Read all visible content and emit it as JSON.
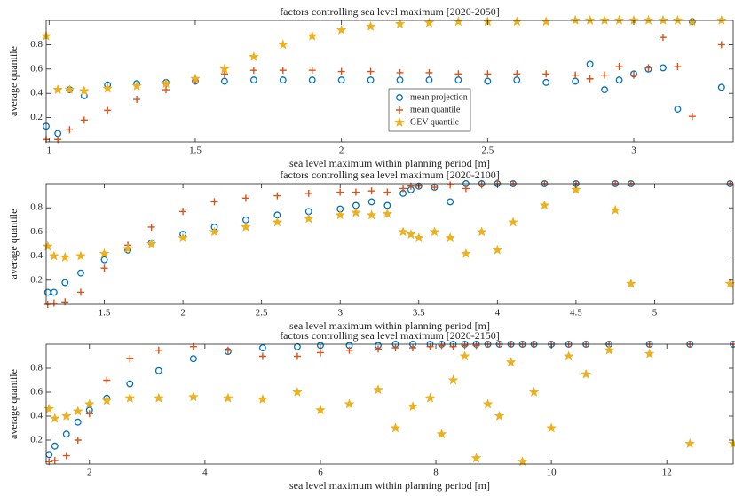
{
  "chart_data": [
    {
      "type": "scatter",
      "title": "factors controlling sea level maximum [2020-2050]",
      "x_label": "sea level maximum within planning period [m]",
      "y_label": "average quantile",
      "xlim": [
        0.99,
        3.34
      ],
      "ylim": [
        0,
        1
      ],
      "xticks": [
        1,
        1.5,
        2,
        2.5,
        3
      ],
      "yticks": [
        0.2,
        0.4,
        0.6,
        0.8
      ],
      "legend": "lower center",
      "x": [
        0.99,
        1.03,
        1.07,
        1.12,
        1.2,
        1.3,
        1.4,
        1.5,
        1.6,
        1.7,
        1.8,
        1.9,
        2.0,
        2.1,
        2.2,
        2.3,
        2.4,
        2.5,
        2.6,
        2.7,
        2.8,
        2.85,
        2.9,
        2.95,
        3.0,
        3.05,
        3.1,
        3.15,
        3.2,
        3.3
      ],
      "series": [
        {
          "name": "mean projection",
          "color": "#0072bd",
          "marker": "circle",
          "values": [
            0.13,
            0.07,
            0.43,
            0.38,
            0.47,
            0.48,
            0.49,
            0.5,
            0.5,
            0.51,
            0.51,
            0.51,
            0.51,
            0.51,
            0.51,
            0.51,
            0.51,
            0.5,
            0.51,
            0.49,
            0.5,
            0.64,
            0.43,
            0.51,
            0.56,
            0.6,
            0.61,
            0.27,
            0.99,
            0.45
          ]
        },
        {
          "name": "mean quantile",
          "color": "#d95319",
          "marker": "plus",
          "values": [
            0.02,
            0.02,
            0.1,
            0.18,
            0.26,
            0.35,
            0.43,
            0.5,
            0.56,
            0.59,
            0.59,
            0.59,
            0.58,
            0.58,
            0.57,
            0.57,
            0.56,
            0.56,
            0.56,
            0.56,
            0.55,
            0.52,
            0.55,
            0.62,
            0.55,
            0.61,
            0.86,
            0.62,
            0.21,
            0.8
          ]
        },
        {
          "name": "GEV quantile",
          "color": "#edb120",
          "marker": "star",
          "values": [
            0.87,
            0.43,
            0.43,
            0.42,
            0.44,
            0.46,
            0.48,
            0.52,
            0.6,
            0.7,
            0.8,
            0.87,
            0.92,
            0.95,
            0.97,
            0.98,
            0.99,
            0.99,
            0.99,
            0.99,
            1,
            1,
            1,
            1,
            1,
            1,
            1,
            1,
            0.99,
            1
          ]
        }
      ]
    },
    {
      "type": "scatter",
      "title": "factors controlling sea level maximum [2020-2100]",
      "x_label": "sea level maximum within planning period [m]",
      "y_label": "average quantile",
      "xlim": [
        1.13,
        5.5
      ],
      "ylim": [
        0,
        1
      ],
      "xticks": [
        1.5,
        2,
        2.5,
        3,
        3.5,
        4,
        4.5,
        5
      ],
      "yticks": [
        0.2,
        0.4,
        0.6,
        0.8
      ],
      "x": [
        1.14,
        1.18,
        1.25,
        1.35,
        1.5,
        1.65,
        1.8,
        2.0,
        2.2,
        2.4,
        2.6,
        2.8,
        3.0,
        3.1,
        3.2,
        3.3,
        3.4,
        3.45,
        3.5,
        3.6,
        3.7,
        3.8,
        3.9,
        4.0,
        4.1,
        4.3,
        4.5,
        4.75,
        4.85,
        5.48
      ],
      "series": [
        {
          "color": "#0072bd",
          "marker": "circle",
          "values": [
            0.1,
            0.1,
            0.18,
            0.26,
            0.37,
            0.45,
            0.51,
            0.58,
            0.64,
            0.7,
            0.74,
            0.77,
            0.79,
            0.82,
            0.85,
            0.82,
            0.92,
            0.95,
            0.98,
            0.97,
            0.85,
            1,
            1,
            1,
            1,
            1,
            1,
            1,
            1,
            1
          ]
        },
        {
          "color": "#d95319",
          "marker": "plus",
          "values": [
            0,
            0.01,
            0.02,
            0.1,
            0.3,
            0.49,
            0.64,
            0.77,
            0.85,
            0.88,
            0.9,
            0.92,
            0.93,
            0.93,
            0.94,
            0.93,
            0.96,
            0.98,
            0.98,
            0.97,
            0.99,
            0.96,
            0.99,
            1,
            1,
            1,
            1,
            1,
            1,
            1
          ]
        },
        {
          "color": "#edb120",
          "marker": "star",
          "values": [
            0.48,
            0.4,
            0.39,
            0.4,
            0.42,
            0.46,
            0.5,
            0.55,
            0.6,
            0.64,
            0.68,
            0.71,
            0.74,
            0.76,
            0.74,
            0.75,
            0.6,
            0.58,
            0.55,
            0.6,
            0.55,
            0.42,
            0.6,
            0.45,
            0.68,
            0.82,
            0.95,
            0.78,
            0.17,
            0.17
          ]
        }
      ]
    },
    {
      "type": "scatter",
      "title": "factors controlling sea level maximum [2020-2150]",
      "x_label": "sea level maximum within planning period [m]",
      "y_label": "average quantile",
      "xlim": [
        1.25,
        13.15
      ],
      "ylim": [
        0,
        1
      ],
      "xticks": [
        2,
        4,
        6,
        8,
        10,
        12
      ],
      "yticks": [
        0.2,
        0.4,
        0.6,
        0.8
      ],
      "x": [
        1.3,
        1.4,
        1.6,
        1.8,
        2.0,
        2.3,
        2.7,
        3.2,
        3.8,
        4.4,
        5.0,
        5.6,
        6.0,
        6.5,
        7.0,
        7.3,
        7.6,
        7.9,
        8.1,
        8.3,
        8.5,
        8.7,
        8.9,
        9.1,
        9.3,
        9.5,
        9.7,
        10.0,
        10.3,
        10.6,
        11.0,
        11.7,
        12.4,
        13.15
      ],
      "series": [
        {
          "color": "#0072bd",
          "marker": "circle",
          "values": [
            0.08,
            0.15,
            0.25,
            0.35,
            0.45,
            0.55,
            0.67,
            0.78,
            0.88,
            0.94,
            0.97,
            0.98,
            0.99,
            0.99,
            0.99,
            1,
            1,
            1,
            1,
            1,
            1,
            1,
            1,
            1,
            1,
            1,
            1,
            1,
            1,
            1,
            1,
            1,
            1,
            1
          ]
        },
        {
          "color": "#d95319",
          "marker": "plus",
          "values": [
            0.02,
            0.03,
            0.07,
            0.2,
            0.42,
            0.7,
            0.88,
            0.95,
            0.98,
            0.95,
            0.9,
            0.9,
            0.93,
            0.95,
            0.96,
            0.97,
            0.97,
            0.98,
            0.99,
            0.98,
            0.99,
            0.99,
            1,
            1,
            1,
            1,
            1,
            1,
            1,
            1,
            1,
            1,
            1,
            1
          ]
        },
        {
          "color": "#edb120",
          "marker": "star",
          "values": [
            0.46,
            0.38,
            0.4,
            0.44,
            0.5,
            0.53,
            0.55,
            0.55,
            0.56,
            0.55,
            0.54,
            0.6,
            0.45,
            0.5,
            0.62,
            0.3,
            0.48,
            0.55,
            0.25,
            0.7,
            0.9,
            0.05,
            0.5,
            0.4,
            0.85,
            0.02,
            0.6,
            0.3,
            0.9,
            0.75,
            0.95,
            0.92,
            0.17,
            0.17
          ]
        }
      ]
    }
  ]
}
